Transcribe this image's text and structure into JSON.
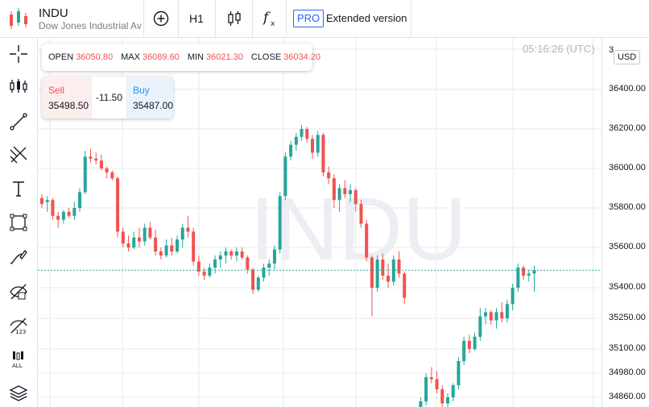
{
  "header": {
    "symbol": "INDU",
    "description": "Dow Jones Industrial Average",
    "interval_label": "H1",
    "pro_badge": "PRO",
    "extended_label": "Extended version",
    "icons": [
      "add-circle-icon",
      "candles-icon",
      "fx-icon"
    ]
  },
  "ohlc": {
    "open_label": "OPEN",
    "open": "36050.80",
    "max_label": "MAX",
    "max": "36089.60",
    "min_label": "MIN",
    "min": "36021.30",
    "close_label": "CLOSE",
    "close": "36034.20"
  },
  "trade": {
    "sell_label": "Sell",
    "sell_value": "35498.50",
    "spread": "-11.50",
    "buy_label": "Buy",
    "buy_value": "35487.00"
  },
  "clock": "05:16:26 (UTC)",
  "axis": {
    "currency": "USD",
    "top_label_partial": "3",
    "labels": [
      "36400.00",
      "36200.00",
      "36000.00",
      "35800.00",
      "35600.00",
      "35400.00",
      "35250.00",
      "35100.00",
      "34980.00",
      "34860.00"
    ]
  },
  "watermark": "INDU",
  "sidebar": {
    "tools": [
      "crosshair-icon",
      "indicators-icon",
      "trend-line-icon",
      "fib-tools-icon",
      "text-icon",
      "shapes-icon",
      "brush-icon",
      "hide-drawings-icon",
      "hide-indicators-icon",
      "remove-all-icon",
      "layers-icon"
    ]
  },
  "colors": {
    "up": "#26a69a",
    "down": "#ef5350",
    "accent": "#2962ff",
    "grid": "#e6e8ee"
  },
  "chart_data": {
    "type": "candlestick",
    "last_price_line": 35487,
    "y_range": [
      34800,
      36500
    ],
    "candles": [
      [
        35850,
        35870,
        35800,
        35820
      ],
      [
        35830,
        35860,
        35780,
        35840
      ],
      [
        35840,
        35850,
        35740,
        35760
      ],
      [
        35760,
        35780,
        35700,
        35740
      ],
      [
        35740,
        35790,
        35720,
        35780
      ],
      [
        35780,
        35800,
        35750,
        35760
      ],
      [
        35760,
        35830,
        35740,
        35800
      ],
      [
        35800,
        35900,
        35780,
        35880
      ],
      [
        35880,
        36090,
        35870,
        36060
      ],
      [
        36060,
        36100,
        36030,
        36050
      ],
      [
        36050,
        36080,
        36020,
        36040
      ],
      [
        36040,
        36070,
        35990,
        36000
      ],
      [
        36000,
        36010,
        35950,
        35980
      ],
      [
        35980,
        35990,
        35940,
        35950
      ],
      [
        35950,
        35960,
        35650,
        35680
      ],
      [
        35680,
        35700,
        35600,
        35620
      ],
      [
        35620,
        35660,
        35580,
        35600
      ],
      [
        35600,
        35680,
        35590,
        35650
      ],
      [
        35650,
        35700,
        35600,
        35630
      ],
      [
        35630,
        35720,
        35610,
        35700
      ],
      [
        35700,
        35730,
        35640,
        35650
      ],
      [
        35650,
        35690,
        35560,
        35580
      ],
      [
        35580,
        35600,
        35540,
        35560
      ],
      [
        35560,
        35640,
        35550,
        35610
      ],
      [
        35610,
        35650,
        35560,
        35580
      ],
      [
        35580,
        35660,
        35570,
        35640
      ],
      [
        35640,
        35720,
        35600,
        35700
      ],
      [
        35700,
        35760,
        35650,
        35680
      ],
      [
        35680,
        35700,
        35510,
        35530
      ],
      [
        35530,
        35560,
        35460,
        35480
      ],
      [
        35480,
        35500,
        35440,
        35460
      ],
      [
        35460,
        35520,
        35450,
        35500
      ],
      [
        35500,
        35560,
        35470,
        35540
      ],
      [
        35540,
        35580,
        35500,
        35560
      ],
      [
        35560,
        35600,
        35520,
        35580
      ],
      [
        35580,
        35590,
        35540,
        35560
      ],
      [
        35560,
        35600,
        35530,
        35580
      ],
      [
        35580,
        35600,
        35540,
        35550
      ],
      [
        35550,
        35560,
        35470,
        35490
      ],
      [
        35490,
        35500,
        35370,
        35390
      ],
      [
        35390,
        35460,
        35380,
        35450
      ],
      [
        35450,
        35520,
        35430,
        35500
      ],
      [
        35500,
        35540,
        35460,
        35520
      ],
      [
        35520,
        35610,
        35490,
        35590
      ],
      [
        35590,
        35880,
        35570,
        35860
      ],
      [
        35860,
        36080,
        35840,
        36060
      ],
      [
        36060,
        36140,
        36040,
        36120
      ],
      [
        36120,
        36180,
        36090,
        36160
      ],
      [
        36160,
        36220,
        36140,
        36200
      ],
      [
        36200,
        36210,
        36130,
        36150
      ],
      [
        36150,
        36170,
        36050,
        36080
      ],
      [
        36080,
        36190,
        36060,
        36170
      ],
      [
        36170,
        36180,
        35960,
        35980
      ],
      [
        35980,
        36010,
        35920,
        35950
      ],
      [
        35950,
        35970,
        35800,
        35840
      ],
      [
        35840,
        35920,
        35780,
        35900
      ],
      [
        35900,
        35940,
        35850,
        35870
      ],
      [
        35870,
        35920,
        35830,
        35890
      ],
      [
        35890,
        35900,
        35780,
        35820
      ],
      [
        35820,
        35840,
        35700,
        35720
      ],
      [
        35720,
        35740,
        35530,
        35550
      ],
      [
        35550,
        35560,
        35260,
        35400
      ],
      [
        35400,
        35560,
        35380,
        35540
      ],
      [
        35540,
        35570,
        35440,
        35460
      ],
      [
        35460,
        35520,
        35400,
        35430
      ],
      [
        35430,
        35560,
        35410,
        35540
      ],
      [
        35540,
        35580,
        35450,
        35470
      ],
      [
        35470,
        35480,
        35320,
        35350
      ],
      [
        34760,
        34790,
        34720,
        34740
      ],
      [
        34740,
        34800,
        34730,
        34780
      ],
      [
        34780,
        34860,
        34760,
        34840
      ],
      [
        34840,
        34980,
        34820,
        34960
      ],
      [
        34960,
        35010,
        34930,
        34950
      ],
      [
        34950,
        34990,
        34880,
        34900
      ],
      [
        34900,
        34920,
        34800,
        34830
      ],
      [
        34830,
        34880,
        34810,
        34860
      ],
      [
        34860,
        34930,
        34840,
        34920
      ],
      [
        34920,
        35060,
        34900,
        35040
      ],
      [
        35040,
        35160,
        35020,
        35140
      ],
      [
        35140,
        35170,
        35080,
        35100
      ],
      [
        35100,
        35180,
        35090,
        35160
      ],
      [
        35160,
        35300,
        35140,
        35260
      ],
      [
        35260,
        35300,
        35220,
        35280
      ],
      [
        35280,
        35290,
        35220,
        35240
      ],
      [
        35240,
        35300,
        35200,
        35280
      ],
      [
        35280,
        35330,
        35230,
        35250
      ],
      [
        35250,
        35340,
        35230,
        35320
      ],
      [
        35320,
        35420,
        35290,
        35400
      ],
      [
        35400,
        35520,
        35380,
        35500
      ],
      [
        35500,
        35510,
        35440,
        35460
      ],
      [
        35460,
        35490,
        35430,
        35470
      ],
      [
        35470,
        35510,
        35380,
        35487
      ]
    ]
  }
}
